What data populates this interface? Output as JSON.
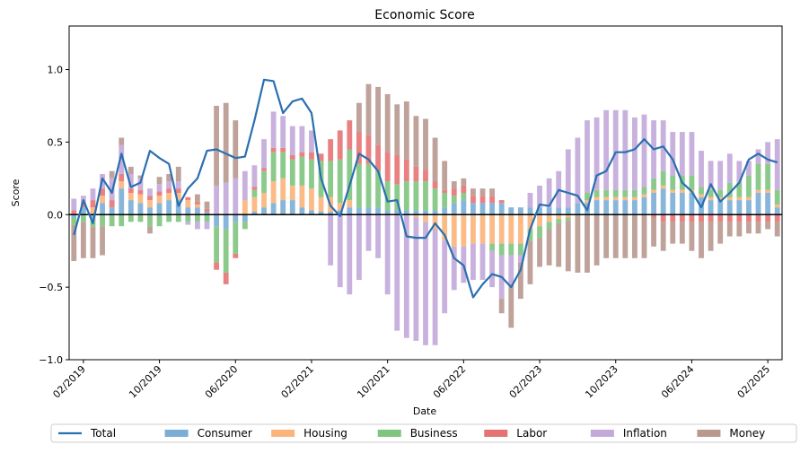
{
  "chart_data": {
    "type": "bar",
    "title": "Economic Score",
    "xlabel": "Date",
    "ylabel": "Score",
    "ylim": [
      -1.0,
      1.3
    ],
    "y_ticks": [
      -1.0,
      -0.5,
      0.0,
      0.5,
      1.0
    ],
    "y_tick_labels": [
      "−1.0",
      "−0.5",
      "0.0",
      "0.5",
      "1.0"
    ],
    "x_tick_labels": [
      "02/2019",
      "10/2019",
      "06/2020",
      "02/2021",
      "10/2021",
      "06/2022",
      "02/2023",
      "10/2023",
      "06/2024",
      "02/2025"
    ],
    "x_tick_indices": [
      1,
      9,
      17,
      25,
      33,
      41,
      49,
      57,
      65,
      73
    ],
    "legend_position": "bottom-center",
    "grid": false,
    "stacked": true,
    "categories": [
      "01/2019",
      "02/2019",
      "03/2019",
      "04/2019",
      "05/2019",
      "06/2019",
      "07/2019",
      "08/2019",
      "09/2019",
      "10/2019",
      "11/2019",
      "12/2019",
      "01/2020",
      "02/2020",
      "03/2020",
      "04/2020",
      "05/2020",
      "06/2020",
      "07/2020",
      "08/2020",
      "09/2020",
      "10/2020",
      "11/2020",
      "12/2020",
      "01/2021",
      "02/2021",
      "03/2021",
      "04/2021",
      "05/2021",
      "06/2021",
      "07/2021",
      "08/2021",
      "09/2021",
      "10/2021",
      "11/2021",
      "12/2021",
      "01/2022",
      "02/2022",
      "03/2022",
      "04/2022",
      "05/2022",
      "06/2022",
      "07/2022",
      "08/2022",
      "09/2022",
      "10/2022",
      "11/2022",
      "12/2022",
      "01/2023",
      "02/2023",
      "03/2023",
      "04/2023",
      "05/2023",
      "06/2023",
      "07/2023",
      "08/2023",
      "09/2023",
      "10/2023",
      "11/2023",
      "12/2023",
      "01/2024",
      "02/2024",
      "03/2024",
      "04/2024",
      "05/2024",
      "06/2024",
      "07/2024",
      "08/2024",
      "09/2024",
      "10/2024",
      "11/2024",
      "12/2024",
      "01/2025",
      "02/2025",
      "03/2025"
    ],
    "series": [
      {
        "name": "Consumer",
        "color": "#7aaed6",
        "values": [
          -0.02,
          0.05,
          -0.03,
          0.08,
          0.05,
          0.18,
          0.1,
          0.08,
          0.05,
          0.08,
          0.1,
          0.1,
          0.05,
          0.05,
          0.02,
          -0.08,
          -0.1,
          -0.05,
          -0.05,
          0.02,
          0.05,
          0.08,
          0.1,
          0.1,
          0.05,
          0.03,
          0.02,
          0.02,
          0.03,
          0.05,
          0.05,
          0.05,
          0.05,
          0.03,
          0.03,
          0.03,
          0.03,
          0.03,
          0.03,
          0.05,
          0.08,
          0.1,
          0.08,
          0.08,
          0.08,
          0.08,
          0.05,
          0.05,
          0.05,
          0.05,
          0.05,
          0.05,
          0.05,
          0.08,
          0.08,
          0.1,
          0.1,
          0.1,
          0.1,
          0.1,
          0.12,
          0.15,
          0.18,
          0.15,
          0.15,
          0.15,
          0.12,
          0.1,
          0.1,
          0.1,
          0.1,
          0.1,
          0.15,
          0.15,
          0.05
        ]
      },
      {
        "name": "Housing",
        "color": "#fbb47a",
        "values": [
          0.0,
          0.0,
          0.05,
          0.05,
          0.0,
          0.05,
          0.05,
          0.06,
          0.05,
          0.05,
          0.05,
          0.05,
          0.05,
          0.02,
          0.0,
          0.0,
          0.0,
          0.0,
          0.1,
          0.1,
          0.1,
          0.15,
          0.15,
          0.1,
          0.15,
          0.15,
          0.1,
          0.1,
          0.05,
          0.05,
          0.0,
          0.0,
          0.0,
          0.0,
          0.0,
          0.0,
          -0.02,
          -0.05,
          -0.1,
          -0.18,
          -0.22,
          -0.22,
          -0.2,
          -0.2,
          -0.2,
          -0.2,
          -0.2,
          -0.2,
          -0.1,
          -0.08,
          -0.05,
          -0.03,
          -0.02,
          0.0,
          0.02,
          0.02,
          0.02,
          0.02,
          0.02,
          0.02,
          0.02,
          0.02,
          0.02,
          0.02,
          0.02,
          0.02,
          0.02,
          0.02,
          0.02,
          0.02,
          0.02,
          0.02,
          0.02,
          0.02,
          0.02
        ]
      },
      {
        "name": "Business",
        "color": "#7fc47f",
        "values": [
          -0.05,
          -0.05,
          -0.05,
          -0.08,
          -0.08,
          -0.08,
          -0.05,
          -0.05,
          -0.08,
          -0.08,
          -0.05,
          -0.05,
          -0.05,
          -0.05,
          -0.05,
          -0.25,
          -0.3,
          -0.22,
          -0.05,
          0.05,
          0.15,
          0.2,
          0.18,
          0.18,
          0.2,
          0.2,
          0.25,
          0.25,
          0.3,
          0.35,
          0.3,
          0.3,
          0.25,
          0.2,
          0.18,
          0.2,
          0.2,
          0.2,
          0.15,
          0.1,
          0.05,
          0.05,
          0.0,
          0.0,
          -0.05,
          -0.08,
          -0.08,
          -0.08,
          -0.08,
          -0.08,
          -0.05,
          -0.03,
          -0.02,
          0.0,
          0.05,
          0.05,
          0.05,
          0.05,
          0.05,
          0.05,
          0.05,
          0.08,
          0.1,
          0.1,
          0.1,
          0.1,
          0.05,
          0.05,
          0.05,
          0.1,
          0.1,
          0.15,
          0.18,
          0.18,
          0.1
        ]
      },
      {
        "name": "Labor",
        "color": "#e57373",
        "values": [
          0.03,
          0.03,
          0.05,
          0.05,
          0.05,
          0.05,
          0.03,
          0.03,
          0.03,
          0.03,
          0.03,
          0.03,
          0.02,
          0.02,
          0.02,
          -0.05,
          -0.08,
          -0.03,
          0.0,
          0.02,
          0.02,
          0.03,
          0.03,
          0.03,
          0.03,
          0.05,
          0.05,
          0.15,
          0.2,
          0.2,
          0.22,
          0.2,
          0.18,
          0.2,
          0.2,
          0.15,
          0.1,
          0.08,
          0.05,
          0.02,
          0.05,
          0.05,
          0.05,
          0.05,
          0.05,
          0.02,
          0.0,
          0.0,
          0.0,
          0.0,
          0.0,
          0.0,
          0.0,
          0.0,
          0.0,
          0.0,
          0.0,
          0.0,
          0.0,
          0.0,
          0.0,
          -0.02,
          -0.05,
          -0.05,
          -0.05,
          -0.05,
          -0.05,
          -0.05,
          -0.05,
          -0.05,
          -0.05,
          -0.05,
          -0.05,
          -0.05,
          -0.05
        ]
      },
      {
        "name": "Inflation",
        "color": "#c3a9da",
        "values": [
          0.08,
          0.05,
          0.08,
          0.1,
          0.15,
          0.2,
          0.1,
          0.08,
          0.05,
          0.05,
          0.05,
          0.05,
          -0.02,
          -0.05,
          -0.05,
          0.2,
          0.22,
          0.25,
          0.2,
          0.15,
          0.2,
          0.25,
          0.22,
          0.2,
          0.18,
          0.15,
          0.0,
          -0.35,
          -0.5,
          -0.55,
          -0.45,
          -0.25,
          -0.3,
          -0.55,
          -0.8,
          -0.85,
          -0.85,
          -0.85,
          -0.8,
          -0.5,
          -0.3,
          -0.25,
          -0.25,
          -0.25,
          -0.25,
          -0.3,
          -0.2,
          -0.05,
          0.1,
          0.15,
          0.2,
          0.25,
          0.4,
          0.45,
          0.5,
          0.5,
          0.55,
          0.55,
          0.55,
          0.5,
          0.5,
          0.4,
          0.35,
          0.3,
          0.3,
          0.3,
          0.25,
          0.2,
          0.2,
          0.2,
          0.15,
          0.1,
          0.1,
          0.15,
          0.35
        ]
      },
      {
        "name": "Money",
        "color": "#b8988f",
        "values": [
          -0.25,
          -0.25,
          -0.22,
          -0.2,
          0.05,
          0.05,
          0.05,
          0.02,
          -0.05,
          0.05,
          0.05,
          0.1,
          0.0,
          0.05,
          0.05,
          0.55,
          0.55,
          0.4,
          0.0,
          0.0,
          0.0,
          0.0,
          0.0,
          0.0,
          0.0,
          0.0,
          0.0,
          0.0,
          0.0,
          0.0,
          0.2,
          0.35,
          0.4,
          0.4,
          0.35,
          0.4,
          0.35,
          0.35,
          0.3,
          0.2,
          0.05,
          0.05,
          0.05,
          0.05,
          0.05,
          -0.1,
          -0.3,
          -0.25,
          -0.3,
          -0.2,
          -0.25,
          -0.3,
          -0.35,
          -0.4,
          -0.4,
          -0.35,
          -0.3,
          -0.3,
          -0.3,
          -0.3,
          -0.3,
          -0.2,
          -0.2,
          -0.15,
          -0.15,
          -0.2,
          -0.25,
          -0.2,
          -0.15,
          -0.1,
          -0.1,
          -0.08,
          -0.08,
          -0.05,
          -0.1
        ]
      }
    ],
    "total": {
      "name": "Total",
      "color": "#2a6fb0",
      "values": [
        -0.14,
        0.1,
        -0.06,
        0.25,
        0.15,
        0.42,
        0.19,
        0.22,
        0.44,
        0.39,
        0.35,
        0.06,
        0.18,
        0.25,
        0.44,
        0.45,
        0.42,
        0.39,
        0.4,
        0.65,
        0.93,
        0.92,
        0.7,
        0.78,
        0.8,
        0.7,
        0.25,
        0.06,
        -0.01,
        0.2,
        0.42,
        0.38,
        0.3,
        0.09,
        0.1,
        -0.15,
        -0.16,
        -0.16,
        -0.06,
        -0.14,
        -0.3,
        -0.35,
        -0.57,
        -0.48,
        -0.41,
        -0.43,
        -0.5,
        -0.38,
        -0.1,
        0.07,
        0.06,
        0.17,
        0.15,
        0.13,
        0.03,
        0.27,
        0.3,
        0.43,
        0.43,
        0.45,
        0.52,
        0.45,
        0.47,
        0.38,
        0.22,
        0.16,
        0.05,
        0.21,
        0.09,
        0.15,
        0.22,
        0.38,
        0.42,
        0.38,
        0.36
      ]
    }
  }
}
